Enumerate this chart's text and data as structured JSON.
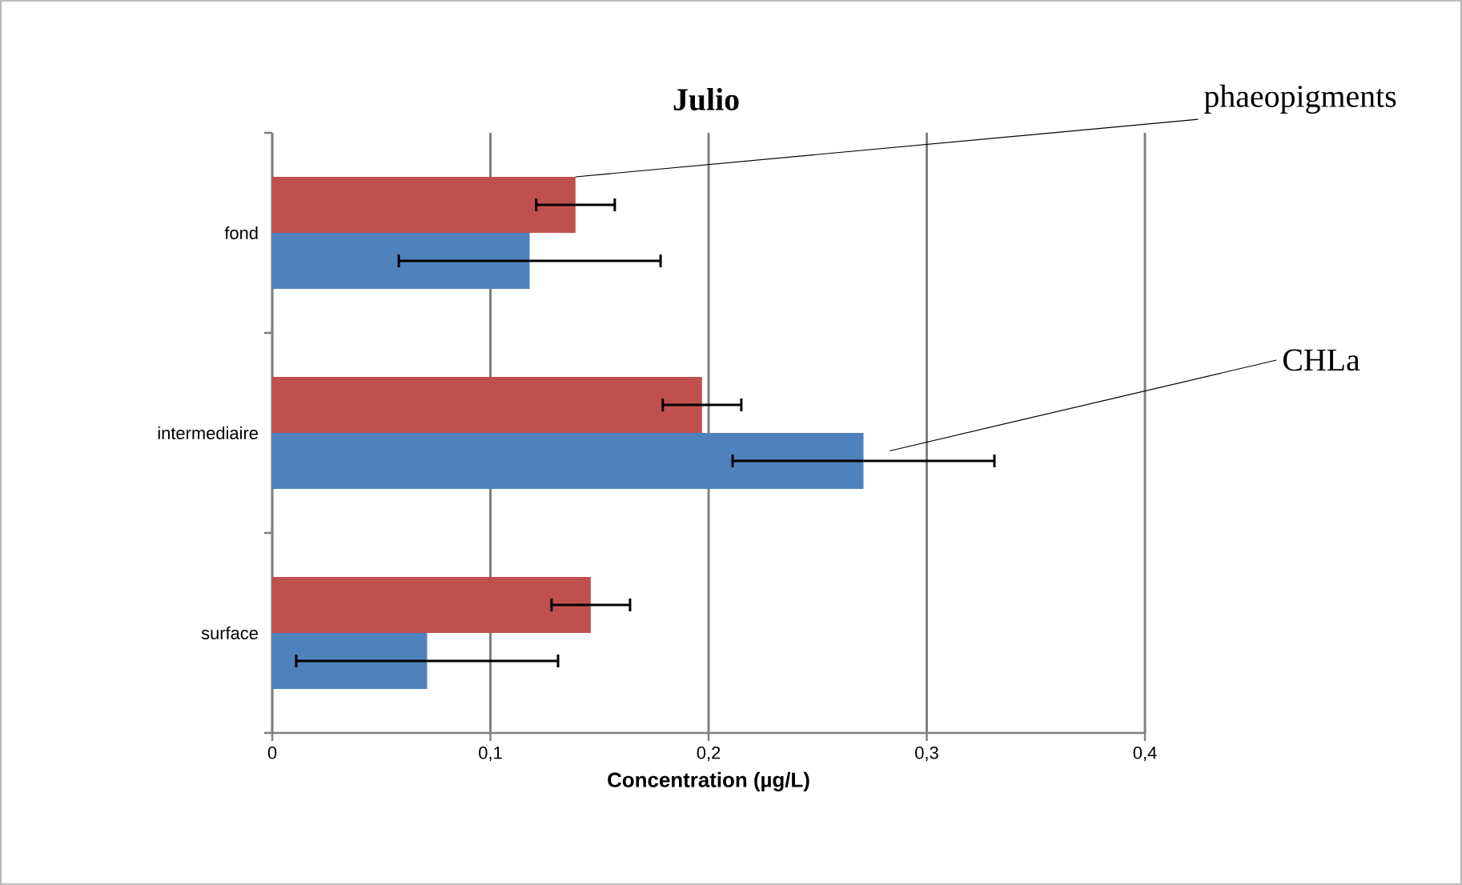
{
  "chart_data": {
    "type": "bar",
    "orientation": "horizontal",
    "title": "Julio",
    "xlabel": "Concentration (µg/L)",
    "categories": [
      "fond",
      "intermediaire",
      "surface"
    ],
    "series": [
      {
        "name": "CHLa",
        "color": "#4f81bd",
        "values": [
          0.118,
          0.271,
          0.071
        ],
        "errors": [
          0.06,
          0.06,
          0.06
        ]
      },
      {
        "name": "phaeopigments",
        "color": "#c0504d",
        "values": [
          0.139,
          0.197,
          0.146
        ],
        "errors": [
          0.018,
          0.018,
          0.018
        ]
      }
    ],
    "xlim": [
      0,
      0.4
    ],
    "xticks": [
      {
        "value": 0,
        "label": "0"
      },
      {
        "value": 0.1,
        "label": "0,1"
      },
      {
        "value": 0.2,
        "label": "0,2"
      },
      {
        "value": 0.3,
        "label": "0,3"
      },
      {
        "value": 0.4,
        "label": "0,4"
      }
    ],
    "grid": "x"
  }
}
